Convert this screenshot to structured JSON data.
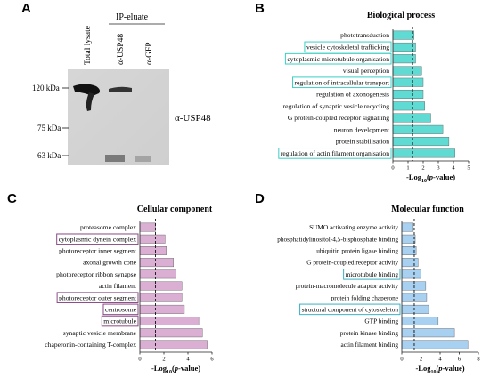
{
  "figure": {
    "panelA": {
      "letter": "A",
      "header": "IP-eluate",
      "lanes": [
        "Total lysate",
        "α-USP48",
        "α-GFP"
      ],
      "markers": [
        "120 kDa",
        "75 kDa",
        "63 kDa"
      ],
      "antibody": "α-USP48"
    }
  },
  "chart_data": [
    {
      "letter": "B",
      "type": "bar",
      "orientation": "horizontal",
      "title": "Biological process",
      "xlabel": "-Log10(p-value)",
      "xlabel_main": "-Log",
      "xlabel_sub": "10",
      "xlabel_open": "(",
      "xlabel_p": "p",
      "xlabel_rest": "-value)",
      "xlim": [
        0,
        5
      ],
      "ticks": [
        "0",
        "1",
        "2",
        "3",
        "4",
        "5"
      ],
      "threshold": 1.3,
      "color": "#5fdbd3",
      "categories": [
        "phototransduction",
        "vesicle cytoskeletal trafficking",
        "cytoplasmic microtubule organisation",
        "visual perception",
        "regulation of intracellular transport",
        "regulation of axonogenesis",
        "regulation of synaptic vesicle recycling",
        "G protein-coupled receptor signalling",
        "neuron development",
        "protein stabilisation",
        "regulation of actin filament organisation"
      ],
      "values": [
        1.4,
        1.5,
        1.5,
        1.9,
        2.0,
        2.0,
        2.1,
        2.5,
        3.3,
        3.7,
        4.1
      ],
      "highlighted": [
        "vesicle cytoskeletal trafficking",
        "cytoplasmic microtubule organisation",
        "regulation of intracellular transport",
        "regulation of actin filament organisation"
      ]
    },
    {
      "letter": "C",
      "type": "bar",
      "orientation": "horizontal",
      "title": "Cellular component",
      "xlabel": "-Log10(p-value)",
      "xlabel_main": "-Log",
      "xlabel_sub": "10",
      "xlabel_open": "(",
      "xlabel_p": "p",
      "xlabel_rest": "-value)",
      "xlim": [
        0,
        6
      ],
      "ticks": [
        "0",
        "2",
        "4",
        "6"
      ],
      "threshold": 1.3,
      "color": "#dbaed4",
      "categories": [
        "proteasome complex",
        "cytoplasmic dynein complex",
        "photoreceptor inner segment",
        "axonal growth cone",
        "photoreceptor ribbon synapse",
        "actin filament",
        "photoreceptor outer segment",
        "centrosome",
        "microtubule",
        "synaptic vesicle membrane",
        "chaperonin-containing T-complex"
      ],
      "values": [
        1.3,
        2.1,
        2.2,
        2.8,
        3.0,
        3.5,
        3.5,
        3.7,
        4.9,
        5.2,
        5.6
      ],
      "highlighted": [
        "cytoplasmic dynein complex",
        "photoreceptor outer segment",
        "centrosome",
        "microtubule"
      ]
    },
    {
      "letter": "D",
      "type": "bar",
      "orientation": "horizontal",
      "title": "Molecular function",
      "xlabel": "-Log10(p-value)",
      "xlabel_main": "-Log",
      "xlabel_sub": "10",
      "xlabel_open": "(",
      "xlabel_p": "p",
      "xlabel_rest": "-value)",
      "xlim": [
        0,
        8
      ],
      "ticks": [
        "0",
        "2",
        "4",
        "6",
        "8"
      ],
      "threshold": 1.3,
      "color": "#a8d0f0",
      "categories": [
        "SUMO activating enzyme activity",
        "phosphatidylinositol-4,5-bisphosphate binding",
        "ubiquitin protein ligase binding",
        "G protein-coupled receptor activity",
        "microtubule binding",
        "protein-macromolecule adaptor activity",
        "protein folding chaperone",
        "structural component of cytoskeleton",
        "GTP binding",
        "protein kinase binding",
        "actin filament binding"
      ],
      "values": [
        1.2,
        1.4,
        1.5,
        1.7,
        2.0,
        2.5,
        2.6,
        2.8,
        3.8,
        5.5,
        6.9
      ],
      "highlighted": [
        "microtubule binding",
        "structural component of cytoskeleton"
      ]
    }
  ]
}
